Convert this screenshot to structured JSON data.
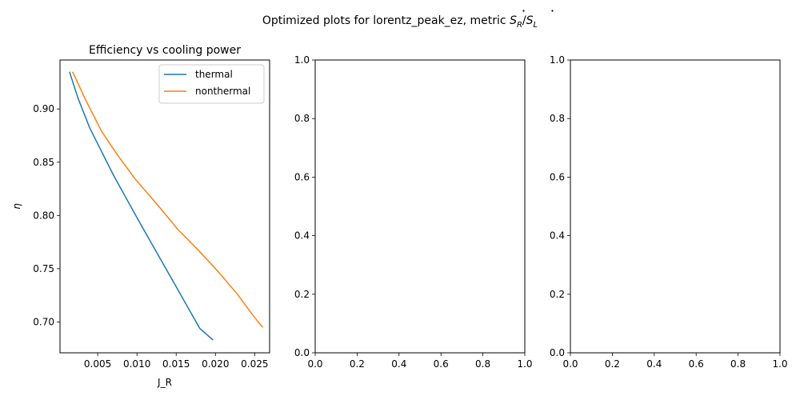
{
  "figure": {
    "suptitle_prefix": "Optimized plots for lorentz_peak_ez, metric ",
    "suptitle_metric_num": "S",
    "suptitle_metric_num_sub": "R",
    "suptitle_metric_sep": "/",
    "suptitle_metric_den": "S",
    "suptitle_metric_den_sub": "L"
  },
  "chart_data": [
    {
      "type": "line",
      "title": "Efficiency vs cooling power",
      "xlabel": "J_R",
      "ylabel": "η",
      "xlim": [
        0.0002,
        0.0269
      ],
      "ylim": [
        0.671,
        0.946
      ],
      "xticks": [
        0.005,
        0.01,
        0.015,
        0.02,
        0.025
      ],
      "xtick_labels": [
        "0.005",
        "0.010",
        "0.015",
        "0.020",
        "0.025"
      ],
      "yticks": [
        0.7,
        0.75,
        0.8,
        0.85,
        0.9
      ],
      "ytick_labels": [
        "0.70",
        "0.75",
        "0.80",
        "0.85",
        "0.90"
      ],
      "legend_position": "top-right",
      "series": [
        {
          "name": "thermal",
          "color": "#1f77b4",
          "x": [
            0.0014,
            0.0025,
            0.004,
            0.0055,
            0.007,
            0.0085,
            0.01,
            0.012,
            0.014,
            0.016,
            0.018,
            0.0197
          ],
          "y": [
            0.935,
            0.91,
            0.882,
            0.86,
            0.838,
            0.818,
            0.798,
            0.772,
            0.746,
            0.72,
            0.694,
            0.683
          ]
        },
        {
          "name": "nonthermal",
          "color": "#ff7f0e",
          "x": [
            0.0018,
            0.0035,
            0.0055,
            0.0075,
            0.0098,
            0.0125,
            0.0152,
            0.018,
            0.0205,
            0.0228,
            0.0248,
            0.026
          ],
          "y": [
            0.935,
            0.908,
            0.879,
            0.857,
            0.834,
            0.811,
            0.787,
            0.766,
            0.746,
            0.726,
            0.706,
            0.695
          ]
        }
      ]
    },
    {
      "type": "line",
      "title": "",
      "xlim": [
        0,
        1
      ],
      "ylim": [
        0,
        1
      ],
      "xticks": [
        0,
        0.2,
        0.4,
        0.6,
        0.8,
        1.0
      ],
      "xtick_labels": [
        "0.0",
        "0.2",
        "0.4",
        "0.6",
        "0.8",
        "1.0"
      ],
      "yticks": [
        0,
        0.2,
        0.4,
        0.6,
        0.8,
        1.0
      ],
      "ytick_labels": [
        "0.0",
        "0.2",
        "0.4",
        "0.6",
        "0.8",
        "1.0"
      ],
      "series": []
    },
    {
      "type": "line",
      "title": "",
      "xlim": [
        0,
        1
      ],
      "ylim": [
        0,
        1
      ],
      "xticks": [
        0,
        0.2,
        0.4,
        0.6,
        0.8,
        1.0
      ],
      "xtick_labels": [
        "0.0",
        "0.2",
        "0.4",
        "0.6",
        "0.8",
        "1.0"
      ],
      "yticks": [
        0,
        0.2,
        0.4,
        0.6,
        0.8,
        1.0
      ],
      "ytick_labels": [
        "0.0",
        "0.2",
        "0.4",
        "0.6",
        "0.8",
        "1.0"
      ],
      "series": []
    }
  ]
}
